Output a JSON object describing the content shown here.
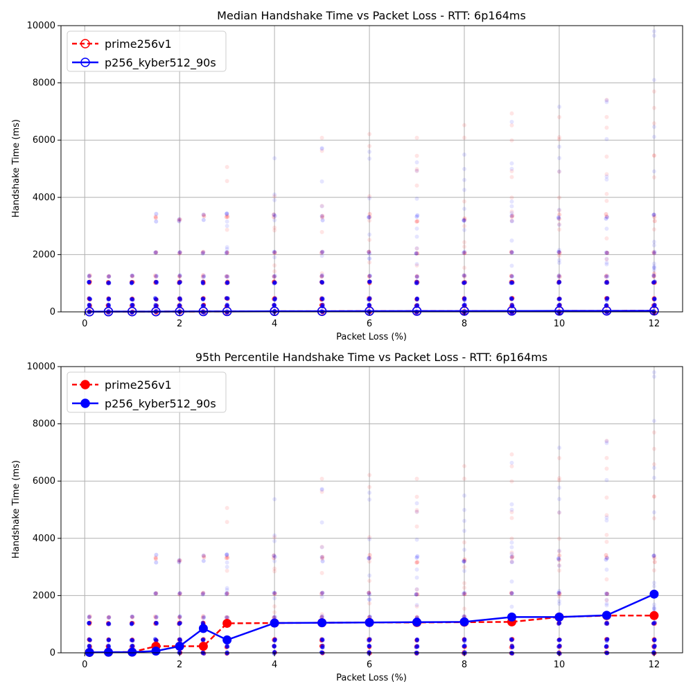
{
  "colors": {
    "prime256v1": "#ff0000",
    "p256_kyber512_90s": "#0000ff",
    "grid": "#b0b0b0"
  },
  "chart_data": [
    {
      "type": "line",
      "title": "Median Handshake Time vs Packet Loss - RTT: 6p164ms",
      "xlabel": "Packet Loss (%)",
      "ylabel": "Handshake Time (ms)",
      "xlim": [
        -0.5,
        12.6
      ],
      "ylim": [
        0,
        10000
      ],
      "xticks": [
        0,
        2,
        4,
        6,
        8,
        10,
        12
      ],
      "yticks": [
        0,
        2000,
        4000,
        6000,
        8000,
        10000
      ],
      "grid": true,
      "legend_position": "top-left",
      "marker_style": "hollow",
      "x": [
        0.1,
        0.5,
        1,
        1.5,
        2,
        2.5,
        3,
        4,
        5,
        6,
        7,
        8,
        9,
        10,
        11,
        12
      ],
      "series": [
        {
          "name": "prime256v1",
          "color": "#ff0000",
          "line_style": "dashed",
          "values": [
            6,
            8,
            9,
            10,
            12,
            14,
            16,
            20,
            22,
            24,
            26,
            28,
            30,
            32,
            34,
            36
          ]
        },
        {
          "name": "p256_kyber512_90s",
          "color": "#0000ff",
          "line_style": "solid",
          "values": [
            6,
            8,
            9,
            10,
            12,
            14,
            16,
            20,
            22,
            24,
            26,
            28,
            30,
            32,
            34,
            36
          ]
        }
      ]
    },
    {
      "type": "line",
      "title": "95th Percentile Handshake Time vs Packet Loss - RTT: 6p164ms",
      "xlabel": "Packet Loss (%)",
      "ylabel": "Handshake Time (ms)",
      "xlim": [
        -0.5,
        12.6
      ],
      "ylim": [
        0,
        10000
      ],
      "xticks": [
        0,
        2,
        4,
        6,
        8,
        10,
        12
      ],
      "yticks": [
        0,
        2000,
        4000,
        6000,
        8000,
        10000
      ],
      "grid": true,
      "legend_position": "top-left",
      "marker_style": "filled",
      "x": [
        0.1,
        0.5,
        1,
        1.5,
        2,
        2.5,
        3,
        4,
        5,
        6,
        7,
        8,
        9,
        10,
        11,
        12
      ],
      "series": [
        {
          "name": "prime256v1",
          "color": "#ff0000",
          "line_style": "dashed",
          "values": [
            15,
            20,
            25,
            230,
            230,
            230,
            1030,
            1040,
            1050,
            1060,
            1060,
            1070,
            1080,
            1250,
            1300,
            1300
          ]
        },
        {
          "name": "p256_kyber512_90s",
          "color": "#0000ff",
          "line_style": "solid",
          "values": [
            15,
            20,
            25,
            60,
            230,
            850,
            450,
            1040,
            1050,
            1060,
            1070,
            1080,
            1250,
            1250,
            1310,
            2050
          ]
        }
      ]
    }
  ],
  "scatter": {
    "levels": [
      0,
      220,
      450,
      1030,
      1250,
      2070,
      3300
    ],
    "high_levels": [
      4400,
      6450,
      6650
    ]
  }
}
